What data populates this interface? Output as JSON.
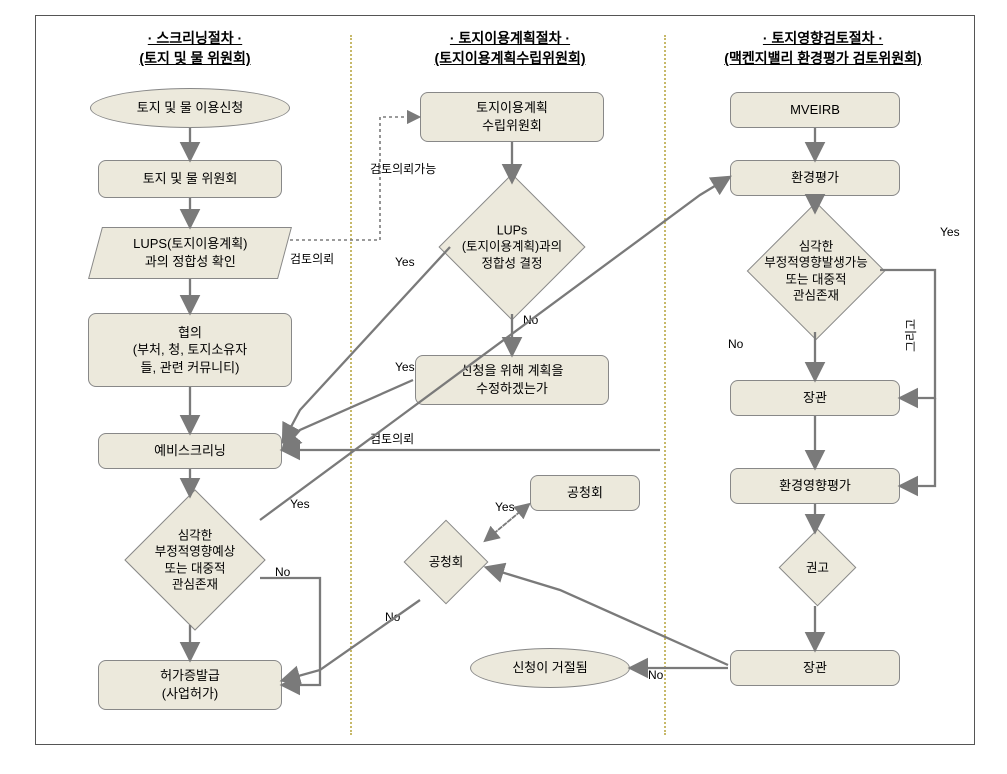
{
  "structure_type": "flowchart",
  "background_color": "#ffffff",
  "node_fill": "#ece9dc",
  "node_border": "#888888",
  "arrow_color": "#7a7a7a",
  "divider_color": "#c7b96a",
  "frame_border": "#555555",
  "font_family": "Malgun Gothic",
  "header_fontsize": 14,
  "node_fontsize": 13,
  "label_fontsize": 12,
  "headers": {
    "col1_l1": "· 스크리닝절차 ·",
    "col1_l2": "(토지 및 물 위원회)",
    "col2_l1": "· 토지이용계획절차 ·",
    "col2_l2": "(토지이용계획수립위원회)",
    "col3_l1": "· 토지영향검토절차 ·",
    "col3_l2": "(맥켄지밸리 환경평가 검토위원회)"
  },
  "nodes": {
    "a1": "토지 및 물 이용신청",
    "a2": "토지 및 물 위원회",
    "a3": "LUPS(토지이용계획)\n과의 정합성 확인",
    "a4": "협의\n(부처, 청, 토지소유자\n들, 관련 커뮤니티)",
    "a5": "예비스크리닝",
    "a6": "심각한\n부정적영향예상\n또는 대중적\n관심존재",
    "a7": "허가증발급\n(사업허가)",
    "b1": "토지이용계획\n수립위원회",
    "b2": "LUPs\n(토지이용계획)과의\n정합성 결정",
    "b3": "신청을 위해 계획을\n수정하겠는가",
    "b4": "공청회",
    "b4b": "공청회",
    "b5": "신청이 거절됨",
    "c1": "MVEIRB",
    "c2": "환경평가",
    "c3": "심각한\n부정적영향발생가능\n또는 대중적\n관심존재",
    "c4": "장관",
    "c5": "환경영향평가",
    "c6": "권고",
    "c7": "장관"
  },
  "labels": {
    "yes": "Yes",
    "no": "No",
    "review_ref": "검토의뢰",
    "review_ref_possible": "검토의뢰가능",
    "and": "그리고"
  },
  "dividers_x": [
    350,
    664
  ]
}
